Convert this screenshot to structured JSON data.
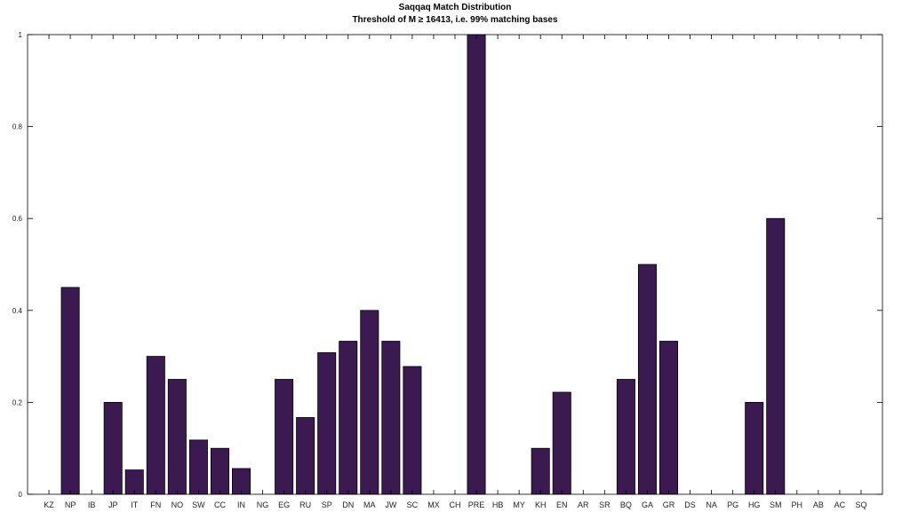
{
  "chart_data": {
    "type": "bar",
    "title": "Saqqaq Match Distribution",
    "subtitle": "Threshold of M ≥ 16413, i.e. 99% matching bases",
    "xlabel": "",
    "ylabel": "",
    "ylim": [
      0,
      1
    ],
    "yticks": [
      "0",
      "0.2",
      "0.4",
      "0.6",
      "0.8",
      "1"
    ],
    "grid": false,
    "bar_color": "#3b1a52",
    "categories": [
      "KZ",
      "NP",
      "IB",
      "JP",
      "IT",
      "FN",
      "NO",
      "SW",
      "CC",
      "IN",
      "NG",
      "EG",
      "RU",
      "SP",
      "DN",
      "MA",
      "JW",
      "SC",
      "MX",
      "CH",
      "PRE",
      "HB",
      "MY",
      "KH",
      "EN",
      "AR",
      "SR",
      "BQ",
      "GA",
      "GR",
      "DS",
      "NA",
      "PG",
      "HG",
      "SM",
      "PH",
      "AB",
      "AC",
      "SQ"
    ],
    "values": [
      0,
      0.45,
      0,
      0.2,
      0.053,
      0.3,
      0.25,
      0.118,
      0.1,
      0.056,
      0,
      0.25,
      0.167,
      0.308,
      0.333,
      0.4,
      0.333,
      0.278,
      0,
      0,
      1.0,
      0,
      0,
      0.1,
      0.222,
      0,
      0,
      0.25,
      0.5,
      0.333,
      0,
      0,
      0,
      0.2,
      0.6,
      0,
      0,
      0,
      0
    ]
  }
}
